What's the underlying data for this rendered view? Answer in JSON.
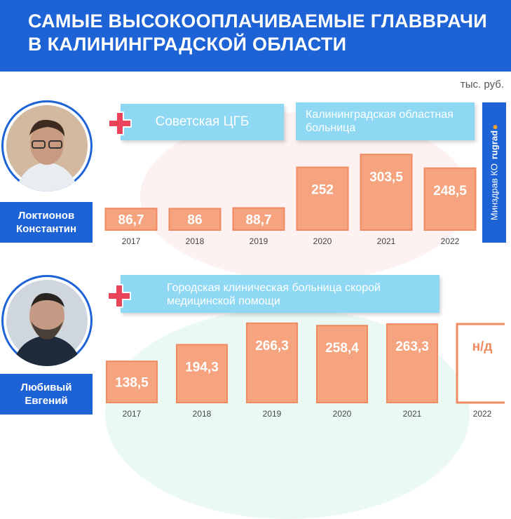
{
  "title": "САМЫЕ ВЫСОКООПЛАЧИВАЕМЫЕ ГЛАВВРАЧИ В КАЛИНИНГРАДСКОЙ ОБЛАСТИ",
  "unit": "тыс. руб.",
  "source": {
    "text": "Минздрав КО",
    "brand": "rugrad"
  },
  "doctors": [
    {
      "name_line1": "Локтионов",
      "name_line2": "Константин"
    },
    {
      "name_line1": "Любивый",
      "name_line2": "Евгений"
    }
  ],
  "hospitals": [
    {
      "label": "Советская ЦГБ"
    },
    {
      "label_line1": "Калининградская областная",
      "label_line2": "больница"
    },
    {
      "label_line1": "Городская клиническая больница скорой",
      "label_line2": "медицинской помощи"
    }
  ],
  "colors": {
    "header": "#1e63d6",
    "bar_fill": "#f5a47f",
    "bar_border": "#f08a60",
    "label_box": "#8fd8f4",
    "cross": "#e9445a"
  },
  "chart_data": [
    {
      "type": "bar",
      "title": "Локтионов Константин",
      "series": [
        {
          "name": "Советская ЦГБ",
          "x": [
            "2017",
            "2018",
            "2019"
          ],
          "values": [
            86.7,
            86,
            88.7
          ],
          "labels": [
            "86,7",
            "86",
            "88,7"
          ]
        },
        {
          "name": "Калининградская областная больница",
          "x": [
            "2020",
            "2021",
            "2022"
          ],
          "values": [
            252,
            303.5,
            248.5
          ],
          "labels": [
            "252",
            "303,5",
            "248,5"
          ]
        }
      ]
    },
    {
      "type": "bar",
      "title": "Любивый Евгений",
      "series": [
        {
          "name": "Городская клиническая больница скорой медицинской помощи",
          "x": [
            "2017",
            "2018",
            "2019",
            "2020",
            "2021",
            "2022"
          ],
          "values": [
            138.5,
            194.3,
            266.3,
            258.4,
            263.3,
            null
          ],
          "labels": [
            "138,5",
            "194,3",
            "266,3",
            "258,4",
            "263,3",
            "н/д"
          ]
        }
      ]
    }
  ]
}
